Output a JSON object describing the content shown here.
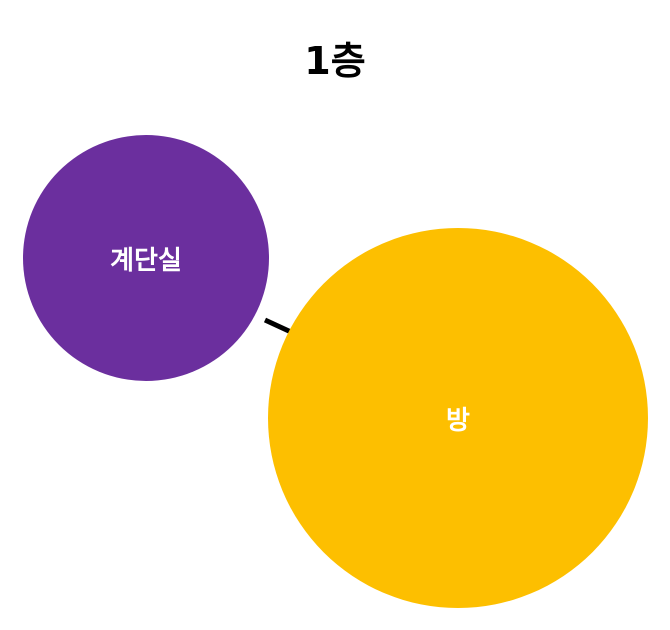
{
  "title": "1층",
  "nodes": [
    {
      "id": "stairwell",
      "label": "계단실",
      "color": "#6b2f9e"
    },
    {
      "id": "room",
      "label": "방",
      "color": "#fdbf00"
    }
  ],
  "edges": [
    {
      "from": "stairwell",
      "to": "room",
      "color": "#000000"
    }
  ]
}
